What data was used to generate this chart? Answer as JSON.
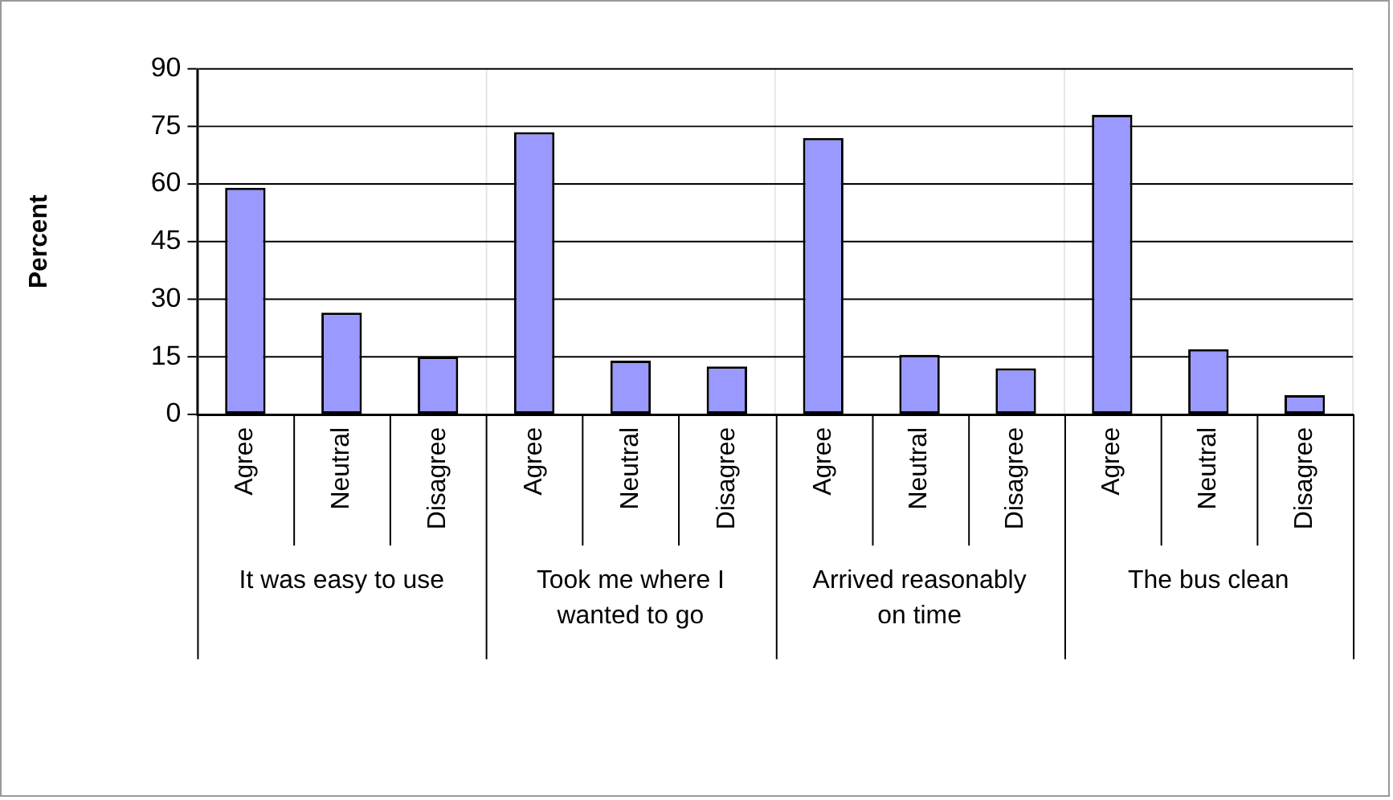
{
  "chart_data": {
    "type": "bar",
    "ylabel": "Percent",
    "categories": [
      "It was easy to use",
      "Took me where I wanted to go",
      "Arrived reasonably on time",
      "The bus clean"
    ],
    "series": [
      {
        "name": "Agree",
        "color": "#9999ff",
        "values": [
          59,
          73.5,
          72,
          78
        ]
      },
      {
        "name": "Neutral",
        "color": "#9999ff",
        "values": [
          26.5,
          14,
          15.5,
          17
        ]
      },
      {
        "name": "Disagree",
        "color": "#9999ff",
        "values": [
          15,
          12.5,
          12,
          5
        ]
      }
    ],
    "ylim": [
      0,
      90
    ],
    "yticks": [
      0,
      15,
      30,
      45,
      60,
      75,
      90
    ],
    "grid": true,
    "legend": false
  }
}
